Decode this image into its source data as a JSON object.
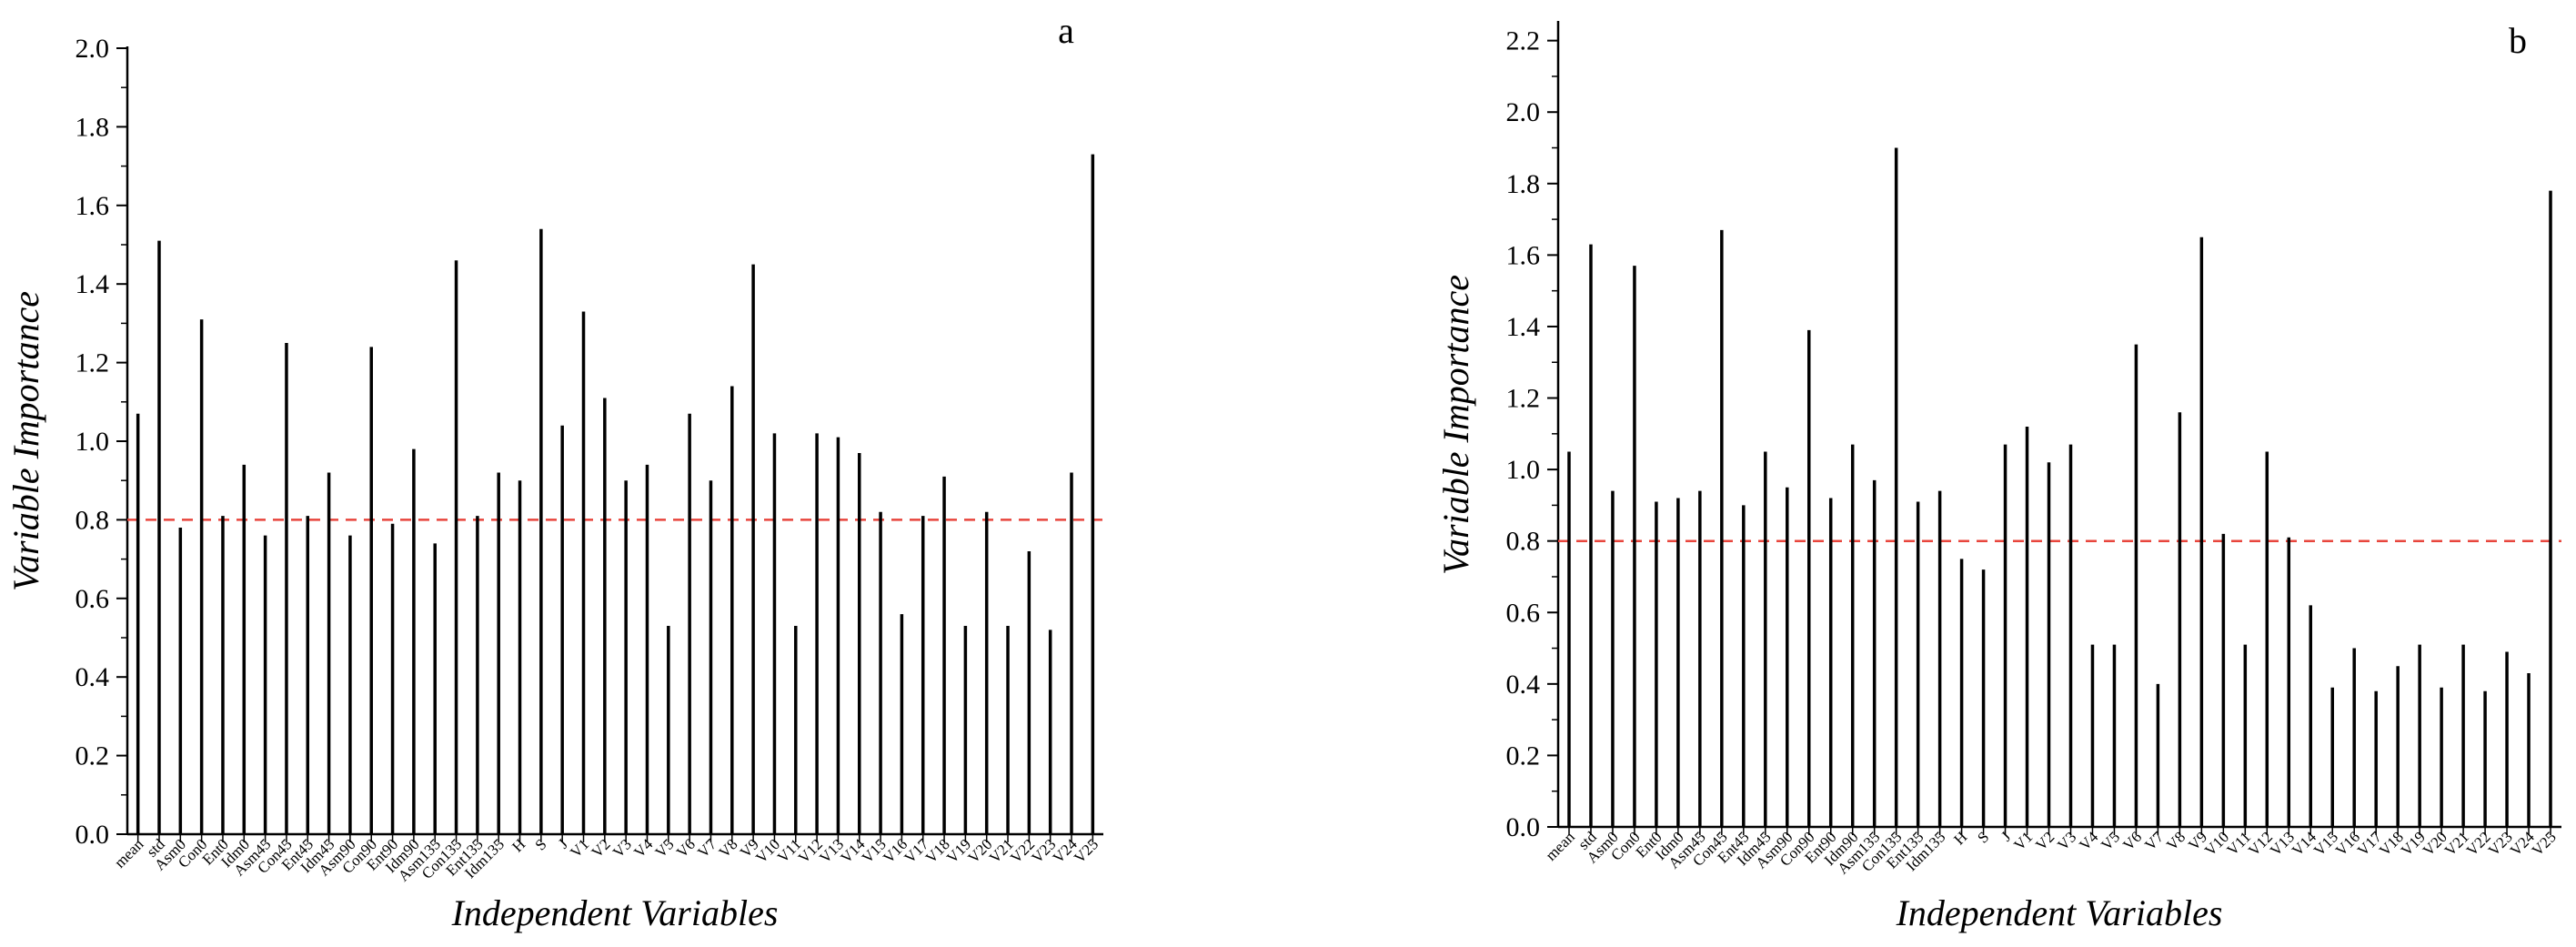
{
  "chart_data": [
    {
      "type": "bar",
      "panel_letter": "a",
      "xlabel": "Independent Variables",
      "ylabel": "Variable Importance",
      "ylim": [
        0,
        2.0
      ],
      "yticks": [
        "0.0",
        "0.2",
        "0.4",
        "0.6",
        "0.8",
        "1.0",
        "1.2",
        "1.4",
        "1.6",
        "1.8",
        "2.0"
      ],
      "threshold": 0.8,
      "categories": [
        "mean",
        "std",
        "Asm0",
        "Con0",
        "Ent0",
        "Idm0",
        "Asm45",
        "Con45",
        "Ent45",
        "Idm45",
        "Asm90",
        "Con90",
        "Ent90",
        "Idm90",
        "Asm135",
        "Con135",
        "Ent135",
        "Idm135",
        "H",
        "S",
        "J",
        "V1",
        "V2",
        "V3",
        "V4",
        "V5",
        "V6",
        "V7",
        "V8",
        "V9",
        "V10",
        "V11",
        "V12",
        "V13",
        "V14",
        "V15",
        "V16",
        "V17",
        "V18",
        "V19",
        "V20",
        "V21",
        "V22",
        "V23",
        "V24",
        "V25"
      ],
      "values": [
        1.07,
        1.51,
        0.78,
        1.31,
        0.81,
        0.94,
        0.76,
        1.25,
        0.81,
        0.92,
        0.76,
        1.24,
        0.79,
        0.98,
        0.74,
        1.46,
        0.81,
        0.92,
        0.9,
        1.54,
        1.04,
        1.33,
        1.11,
        0.9,
        0.94,
        0.53,
        1.07,
        0.9,
        1.14,
        1.45,
        1.02,
        0.53,
        1.02,
        1.01,
        0.97,
        0.82,
        0.56,
        0.81,
        0.91,
        0.53,
        0.82,
        0.53,
        0.72,
        0.52,
        0.92,
        1.73
      ]
    },
    {
      "type": "bar",
      "panel_letter": "b",
      "xlabel": "Independent Variables",
      "ylabel": "Variable Importance",
      "ylim": [
        0,
        2.25
      ],
      "yticks": [
        "0.0",
        "0.2",
        "0.4",
        "0.6",
        "0.8",
        "1.0",
        "1.2",
        "1.4",
        "1.6",
        "1.8",
        "2.0",
        "2.2"
      ],
      "threshold": 0.8,
      "categories": [
        "mean",
        "std",
        "Asm0",
        "Con0",
        "Ent0",
        "Idm0",
        "Asm45",
        "Con45",
        "Ent45",
        "Idm45",
        "Asm90",
        "Con90",
        "Ent90",
        "Idm90",
        "Asm135",
        "Con135",
        "Ent135",
        "Idm135",
        "H",
        "S",
        "J",
        "V1",
        "V2",
        "V3",
        "V4",
        "V5",
        "V6",
        "V7",
        "V8",
        "V9",
        "V10",
        "V11",
        "V12",
        "V13",
        "V14",
        "V15",
        "V16",
        "V17",
        "V18",
        "V19",
        "V20",
        "V21",
        "V22",
        "V23",
        "V24",
        "V25"
      ],
      "values": [
        1.05,
        1.63,
        0.94,
        1.57,
        0.91,
        0.92,
        0.94,
        1.67,
        0.9,
        1.05,
        0.95,
        1.39,
        0.92,
        1.07,
        0.97,
        1.9,
        0.91,
        0.94,
        0.75,
        0.72,
        1.07,
        1.12,
        1.02,
        1.07,
        0.51,
        0.51,
        1.35,
        0.4,
        1.16,
        1.65,
        0.82,
        0.51,
        1.05,
        0.81,
        0.62,
        0.39,
        0.5,
        0.38,
        0.45,
        0.51,
        0.39,
        0.51,
        0.38,
        0.49,
        0.43,
        1.78
      ]
    }
  ]
}
